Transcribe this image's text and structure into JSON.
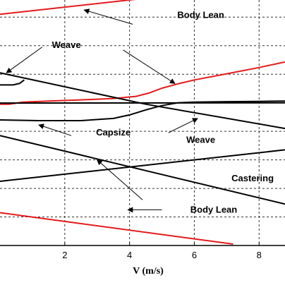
{
  "chart_data": {
    "type": "line",
    "title": "",
    "xlabel": "V (m/s)",
    "ylabel": "",
    "xlim": [
      0,
      8.8
    ],
    "x_ticks": [
      2,
      4,
      6,
      8
    ],
    "ylim": [
      -10,
      7.2
    ],
    "grid": true,
    "colors": {
      "red": "#e31a1c",
      "black": "#000000",
      "grid": "#333333"
    },
    "series": [
      {
        "color": "#e31a1c",
        "x": [
          0,
          7.2
        ],
        "y": [
          6.2,
          8.0
        ]
      },
      {
        "color": "#e31a1c",
        "x": [
          0,
          0.3,
          0.7,
          1.5,
          2.5,
          3.5,
          4.2,
          4.6,
          5.0,
          5.5,
          6.0,
          7.0,
          8.0,
          8.8
        ],
        "y": [
          -0.1,
          -0.1,
          0.05,
          0.12,
          0.2,
          0.3,
          0.45,
          0.68,
          1.02,
          1.33,
          1.6,
          2.03,
          2.47,
          2.86
        ]
      },
      {
        "color": "#e31a1c",
        "x": [
          0,
          7.2
        ],
        "y": [
          -7.7,
          -9.9
        ]
      },
      {
        "color": "#000000",
        "x": [
          0,
          4.5,
          8.8
        ],
        "y": [
          2.1,
          -0.1,
          -1.8
        ]
      },
      {
        "color": "#000000",
        "x": [
          0,
          0.4,
          0.6,
          0.75
        ],
        "y": [
          1.25,
          1.25,
          1.35,
          1.6
        ]
      },
      {
        "color": "#000000",
        "x": [
          0,
          1.2,
          2.5,
          3.5,
          4.0,
          4.5,
          5.0,
          5.5,
          6.0,
          7.0,
          8.0,
          8.8
        ],
        "y": [
          -1.2,
          -1.25,
          -1.25,
          -1.1,
          -0.85,
          -0.5,
          -0.2,
          0.0,
          0.05,
          0.08,
          0.1,
          0.12
        ]
      },
      {
        "color": "#000000",
        "x": [
          0,
          8.8
        ],
        "y": [
          -0.02,
          0.0
        ]
      },
      {
        "color": "#000000",
        "x": [
          0,
          8.8
        ],
        "y": [
          -2.3,
          -7.1
        ]
      },
      {
        "color": "#000000",
        "x": [
          0,
          8.8
        ],
        "y": [
          -5.5,
          -3.3
        ]
      }
    ],
    "annotations": [
      {
        "text": "Body Lean",
        "x": 6.2,
        "y": 5.95
      },
      {
        "text": "Weave",
        "x": 2.05,
        "y": 3.85
      },
      {
        "text": "Capsize",
        "x": 3.5,
        "y": -2.3
      },
      {
        "text": "Weave",
        "x": 6.2,
        "y": -2.8
      },
      {
        "text": "Castering",
        "x": 7.8,
        "y": -5.5
      },
      {
        "text": "Body Lean",
        "x": 6.6,
        "y": -7.7
      }
    ],
    "arrows": [
      {
        "from": [
          4.1,
          5.5
        ],
        "to": [
          2.6,
          6.5
        ]
      },
      {
        "from": [
          1.3,
          3.9
        ],
        "to": [
          0.2,
          2.1
        ]
      },
      {
        "from": [
          3.8,
          3.7
        ],
        "to": [
          5.4,
          1.35
        ]
      },
      {
        "from": [
          2.2,
          -2.3
        ],
        "to": [
          1.2,
          -1.55
        ]
      },
      {
        "from": [
          5.2,
          -2.1
        ],
        "to": [
          6.1,
          -1.1
        ]
      },
      {
        "from": [
          4.4,
          -6.8
        ],
        "to": [
          3.0,
          -4.0
        ]
      },
      {
        "from": [
          5.0,
          -7.5
        ],
        "to": [
          3.95,
          -7.5
        ]
      }
    ]
  }
}
